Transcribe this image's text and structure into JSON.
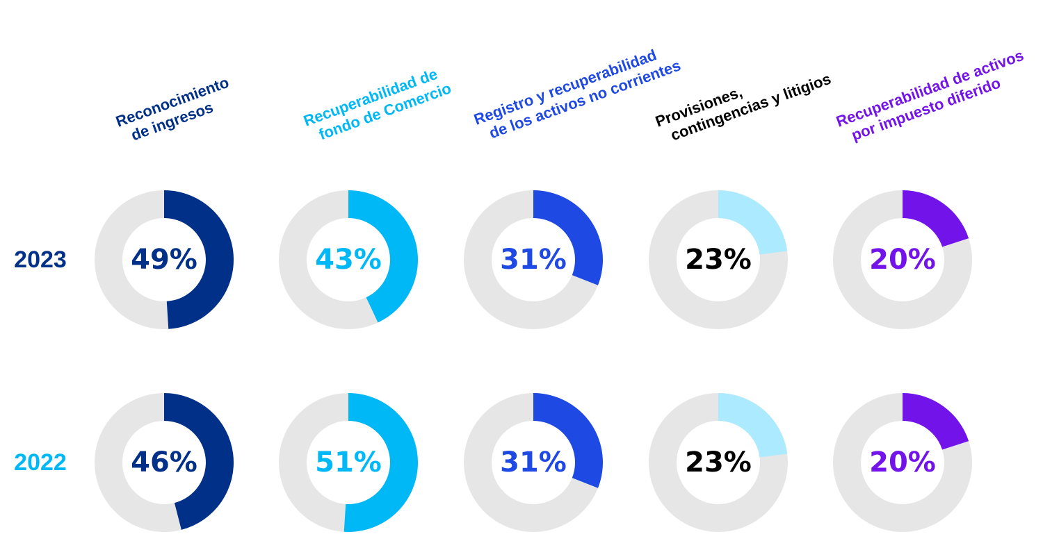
{
  "chart_data": {
    "type": "donut",
    "track_color": "#e6e6e6",
    "categories": [
      {
        "label_lines": [
          "Reconocimiento",
          "de ingresos"
        ],
        "color": "#003087"
      },
      {
        "label_lines": [
          "Recuperabilidad de",
          "fondo de Comercio"
        ],
        "color": "#00b8f5"
      },
      {
        "label_lines": [
          "Registro y recuperabilidad",
          "de los activos no corrientes"
        ],
        "color": "#1e49e2"
      },
      {
        "label_lines": [
          "Provisiones,",
          "contingencias y litigios"
        ],
        "color": "#000000",
        "fill_color": "#aceaff"
      },
      {
        "label_lines": [
          "Recuperabilidad de activos",
          "por impuesto diferido"
        ],
        "color": "#7213ea"
      }
    ],
    "series": [
      {
        "name": "2023",
        "name_color": "#003087",
        "values": [
          49,
          43,
          31,
          23,
          20
        ],
        "labels": [
          "49%",
          "43%",
          "31%",
          "23%",
          "20%"
        ]
      },
      {
        "name": "2022",
        "name_color": "#00b8f5",
        "values": [
          46,
          51,
          31,
          23,
          20
        ],
        "labels": [
          "46%",
          "51%",
          "31%",
          "23%",
          "20%"
        ]
      }
    ]
  }
}
